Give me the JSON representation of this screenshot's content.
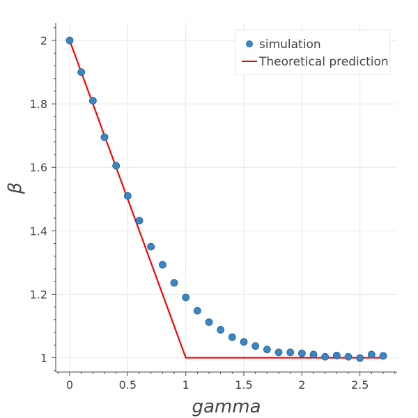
{
  "chart_data": {
    "type": "scatter",
    "xlabel": "gamma",
    "ylabel": "β",
    "xlim": [
      -0.12,
      2.82
    ],
    "ylim": [
      0.955,
      2.055
    ],
    "xticks": [
      0,
      0.5,
      1,
      1.5,
      2,
      2.5
    ],
    "xtick_labels": [
      "0",
      "0.5",
      "1",
      "1.5",
      "2",
      "2.5"
    ],
    "yticks": [
      1,
      1.2,
      1.4,
      1.6,
      1.8,
      2
    ],
    "ytick_labels": [
      "1",
      "1.2",
      "1.4",
      "1.6",
      "1.8",
      "2"
    ],
    "grid": true,
    "legend_position": "top-right",
    "series": [
      {
        "name": "simulation",
        "kind": "scatter",
        "color": "#3a86c3",
        "x": [
          0,
          0.1,
          0.2,
          0.3,
          0.4,
          0.5,
          0.6,
          0.7,
          0.8,
          0.9,
          1.0,
          1.1,
          1.2,
          1.3,
          1.4,
          1.5,
          1.6,
          1.7,
          1.8,
          1.9,
          2.0,
          2.1,
          2.2,
          2.3,
          2.4,
          2.5,
          2.6,
          2.7
        ],
        "y": [
          2.0,
          1.9,
          1.81,
          1.695,
          1.605,
          1.51,
          1.432,
          1.35,
          1.293,
          1.236,
          1.19,
          1.148,
          1.112,
          1.088,
          1.065,
          1.05,
          1.037,
          1.026,
          1.017,
          1.017,
          1.014,
          1.01,
          1.003,
          1.007,
          1.003,
          0.999,
          1.01,
          1.006
        ]
      },
      {
        "name": "Theoretical prediction",
        "kind": "line",
        "color": "#ff0000",
        "x": [
          0,
          1,
          2.7
        ],
        "y": [
          2,
          1,
          1
        ]
      }
    ]
  }
}
